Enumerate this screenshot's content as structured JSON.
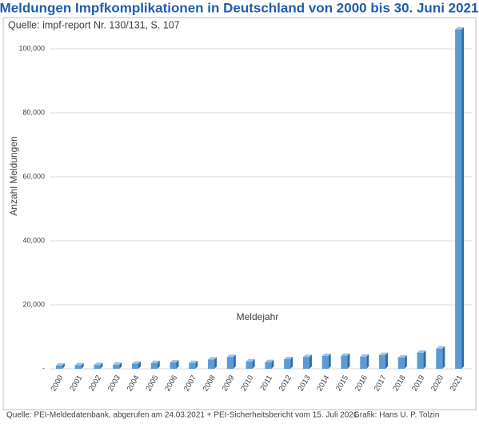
{
  "chart_data": {
    "type": "bar3d",
    "title": "Meldungen Impfkomplikationen in Deutschland von 2000 bis 30. Juni 2021",
    "subtitle": "Quelle: impf-report Nr. 130/131, S. 107",
    "y_label": "Anzahl Meldungen",
    "x_label": "Meldejahr",
    "source": "Quelle: PEI-Meldedatenbank, abgerufen am 24.03.2021 + PEI-Sicherheitsbericht vom 15. Juli 2021",
    "credit": "Grafik: Hans U. P. Tolzin",
    "categories": [
      "2000",
      "2001",
      "2002",
      "2003",
      "2004",
      "2005",
      "2006",
      "2007",
      "2008",
      "2009",
      "2010",
      "2011",
      "2012",
      "2013",
      "2014",
      "2015",
      "2016",
      "2017",
      "2018",
      "2019",
      "2020",
      "2021"
    ],
    "values": [
      1000,
      1100,
      1200,
      1300,
      1600,
      1800,
      2000,
      1800,
      2900,
      3700,
      2300,
      2100,
      3000,
      3700,
      4000,
      4100,
      3800,
      4300,
      3500,
      5000,
      6300,
      106000
    ],
    "color": "#5b9bd5",
    "ylim": [
      0,
      110000
    ],
    "yticks": [
      {
        "value": 0,
        "label": "-"
      },
      {
        "value": 20000,
        "label": "20,000"
      },
      {
        "value": 40000,
        "label": "40,000"
      },
      {
        "value": 60000,
        "label": "60,000"
      },
      {
        "value": 80000,
        "label": "80,000"
      },
      {
        "value": 100000,
        "label": "100,000"
      }
    ],
    "grid": true
  }
}
